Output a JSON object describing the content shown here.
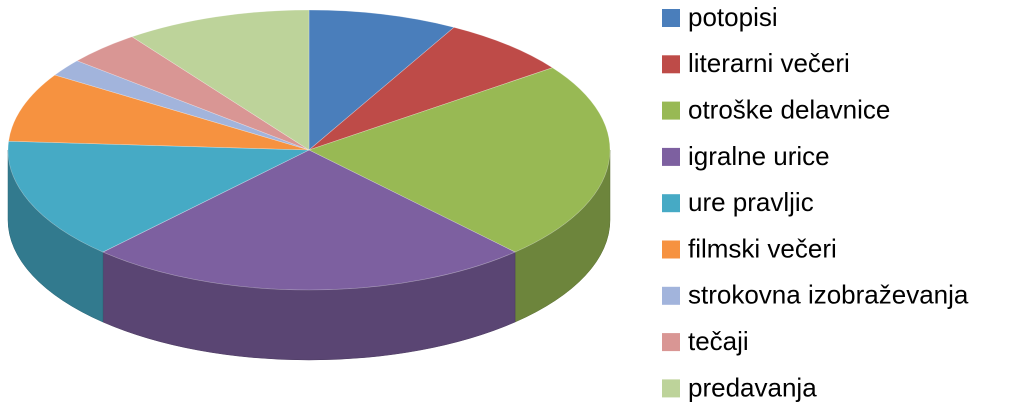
{
  "chart_data": {
    "type": "pie3d",
    "categories": [
      "potopisi",
      "literarni večeri",
      "otroške delavnice",
      "igralne urice",
      "ure pravljic",
      "filmski večeri",
      "strokovna izobraževanja",
      "tečaji",
      "predavanja"
    ],
    "values": [
      8,
      7,
      23,
      24,
      14,
      8,
      2,
      4,
      10
    ],
    "colors": [
      "#4a7ebb",
      "#be4b48",
      "#98b954",
      "#7d60a0",
      "#46aac5",
      "#f69240",
      "#a2b4dc",
      "#d99694",
      "#bdd39a"
    ],
    "legend": "right"
  }
}
